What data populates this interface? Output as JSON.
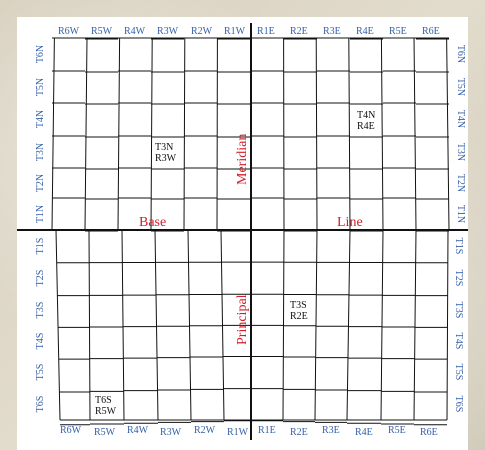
{
  "diagram": {
    "ranges_top": [
      "R6W",
      "R5W",
      "R4W",
      "R3W",
      "R2W",
      "R1W",
      "R1E",
      "R2E",
      "R3E",
      "R4E",
      "R5E",
      "R6E"
    ],
    "ranges_bottom": [
      "R6W",
      "R5W",
      "R4W",
      "R3W",
      "R2W",
      "R1W",
      "R1E",
      "R2E",
      "R3E",
      "R4E",
      "R5E",
      "R6E"
    ],
    "townships_north": [
      "T6N",
      "T5N",
      "T4N",
      "T3N",
      "T2N",
      "T1N"
    ],
    "townships_south": [
      "T1S",
      "T2S",
      "T3S",
      "T4S",
      "T5S",
      "T6S"
    ],
    "axis_labels": {
      "base": "Base",
      "line": "Line",
      "meridian": "Meridian",
      "principal": "Principal"
    },
    "cell_labels": [
      {
        "line1": "T4N",
        "line2": "R4E"
      },
      {
        "line1": "T3N",
        "line2": "R3W"
      },
      {
        "line1": "T3S",
        "line2": "R2E"
      },
      {
        "line1": "T6S",
        "line2": "R5W"
      }
    ],
    "colors": {
      "label_blue": "#3560a8",
      "label_red": "#d0202a",
      "grid": "#111111",
      "background": "#d9d3c2"
    }
  }
}
